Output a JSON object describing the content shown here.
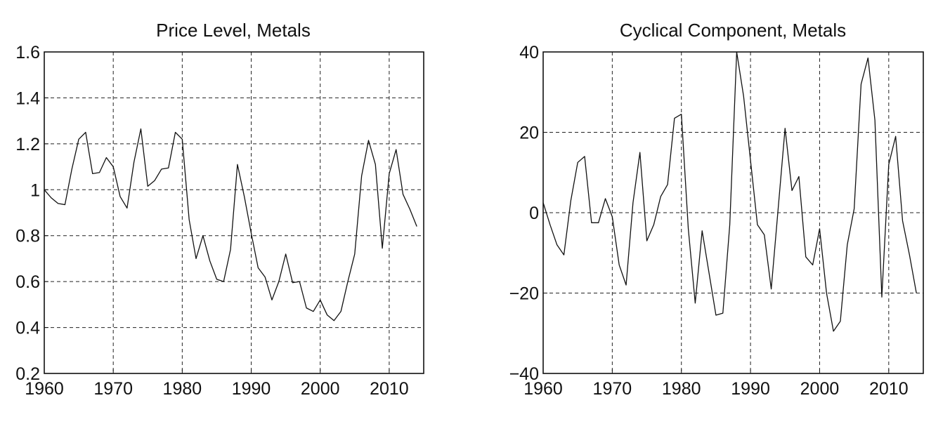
{
  "chart_data": [
    {
      "type": "line",
      "title": "Price Level, Metals",
      "xlabel": "",
      "ylabel": "",
      "xlim": [
        1960,
        2015
      ],
      "ylim": [
        0.2,
        1.6
      ],
      "grid": true,
      "x_ticks": [
        1960,
        1970,
        1980,
        1990,
        2000,
        2010
      ],
      "x_tick_labels": [
        "1960",
        "1970",
        "1980",
        "1990",
        "2000",
        "2010"
      ],
      "y_ticks": [
        0.2,
        0.4,
        0.6,
        0.8,
        1.0,
        1.2,
        1.4,
        1.6
      ],
      "y_tick_labels": [
        "0.2",
        "0.4",
        "0.6",
        "0.8",
        "1",
        "1.2",
        "1.4",
        "1.6"
      ],
      "series": [
        {
          "name": "Price Level",
          "x": [
            1960,
            1961,
            1962,
            1963,
            1964,
            1965,
            1966,
            1967,
            1968,
            1969,
            1970,
            1971,
            1972,
            1973,
            1974,
            1975,
            1976,
            1977,
            1978,
            1979,
            1980,
            1981,
            1982,
            1983,
            1984,
            1985,
            1986,
            1987,
            1988,
            1989,
            1990,
            1991,
            1992,
            1993,
            1994,
            1995,
            1996,
            1997,
            1998,
            1999,
            2000,
            2001,
            2002,
            2003,
            2004,
            2005,
            2006,
            2007,
            2008,
            2009,
            2010,
            2011,
            2012,
            2013,
            2014
          ],
          "values": [
            1.0,
            0.965,
            0.94,
            0.935,
            1.09,
            1.22,
            1.25,
            1.07,
            1.075,
            1.14,
            1.1,
            0.97,
            0.92,
            1.12,
            1.265,
            1.015,
            1.04,
            1.09,
            1.095,
            1.25,
            1.22,
            0.87,
            0.7,
            0.8,
            0.69,
            0.61,
            0.6,
            0.74,
            1.11,
            0.97,
            0.81,
            0.66,
            0.62,
            0.52,
            0.6,
            0.72,
            0.595,
            0.6,
            0.485,
            0.47,
            0.52,
            0.455,
            0.43,
            0.47,
            0.6,
            0.72,
            1.06,
            1.215,
            1.11,
            0.745,
            1.07,
            1.175,
            0.98,
            0.915,
            0.84
          ]
        }
      ]
    },
    {
      "type": "line",
      "title": "Cyclical Component, Metals",
      "xlabel": "",
      "ylabel": "",
      "xlim": [
        1960,
        2015
      ],
      "ylim": [
        -40,
        40
      ],
      "grid": true,
      "x_ticks": [
        1960,
        1970,
        1980,
        1990,
        2000,
        2010
      ],
      "x_tick_labels": [
        "1960",
        "1970",
        "1980",
        "1990",
        "2000",
        "2010"
      ],
      "y_ticks": [
        -40,
        -20,
        0,
        20,
        40
      ],
      "y_tick_labels": [
        "−40",
        "−20",
        "0",
        "20",
        "40"
      ],
      "series": [
        {
          "name": "Cyclical Component",
          "x": [
            1960,
            1961,
            1962,
            1963,
            1964,
            1965,
            1966,
            1967,
            1968,
            1969,
            1970,
            1971,
            1972,
            1973,
            1974,
            1975,
            1976,
            1977,
            1978,
            1979,
            1980,
            1981,
            1982,
            1983,
            1984,
            1985,
            1986,
            1987,
            1988,
            1989,
            1990,
            1991,
            1992,
            1993,
            1994,
            1995,
            1996,
            1997,
            1998,
            1999,
            2000,
            2001,
            2002,
            2003,
            2004,
            2005,
            2006,
            2007,
            2008,
            2009,
            2010,
            2011,
            2012,
            2013,
            2014
          ],
          "values": [
            2.5,
            -3,
            -8,
            -10.5,
            3,
            12.5,
            14,
            -2.5,
            -2.5,
            3.5,
            -1,
            -13,
            -18,
            2.5,
            15,
            -7,
            -3,
            4,
            7,
            23.5,
            24.5,
            -4,
            -22.5,
            -4.5,
            -15,
            -25.5,
            -25,
            -3,
            40,
            29,
            13,
            -3,
            -5.5,
            -19,
            1,
            21,
            5.5,
            9,
            -11,
            -13,
            -4,
            -20,
            -29.5,
            -27,
            -8,
            1,
            32,
            38.5,
            23,
            -21,
            12,
            19,
            -2,
            -10.5,
            -20
          ]
        }
      ]
    }
  ]
}
